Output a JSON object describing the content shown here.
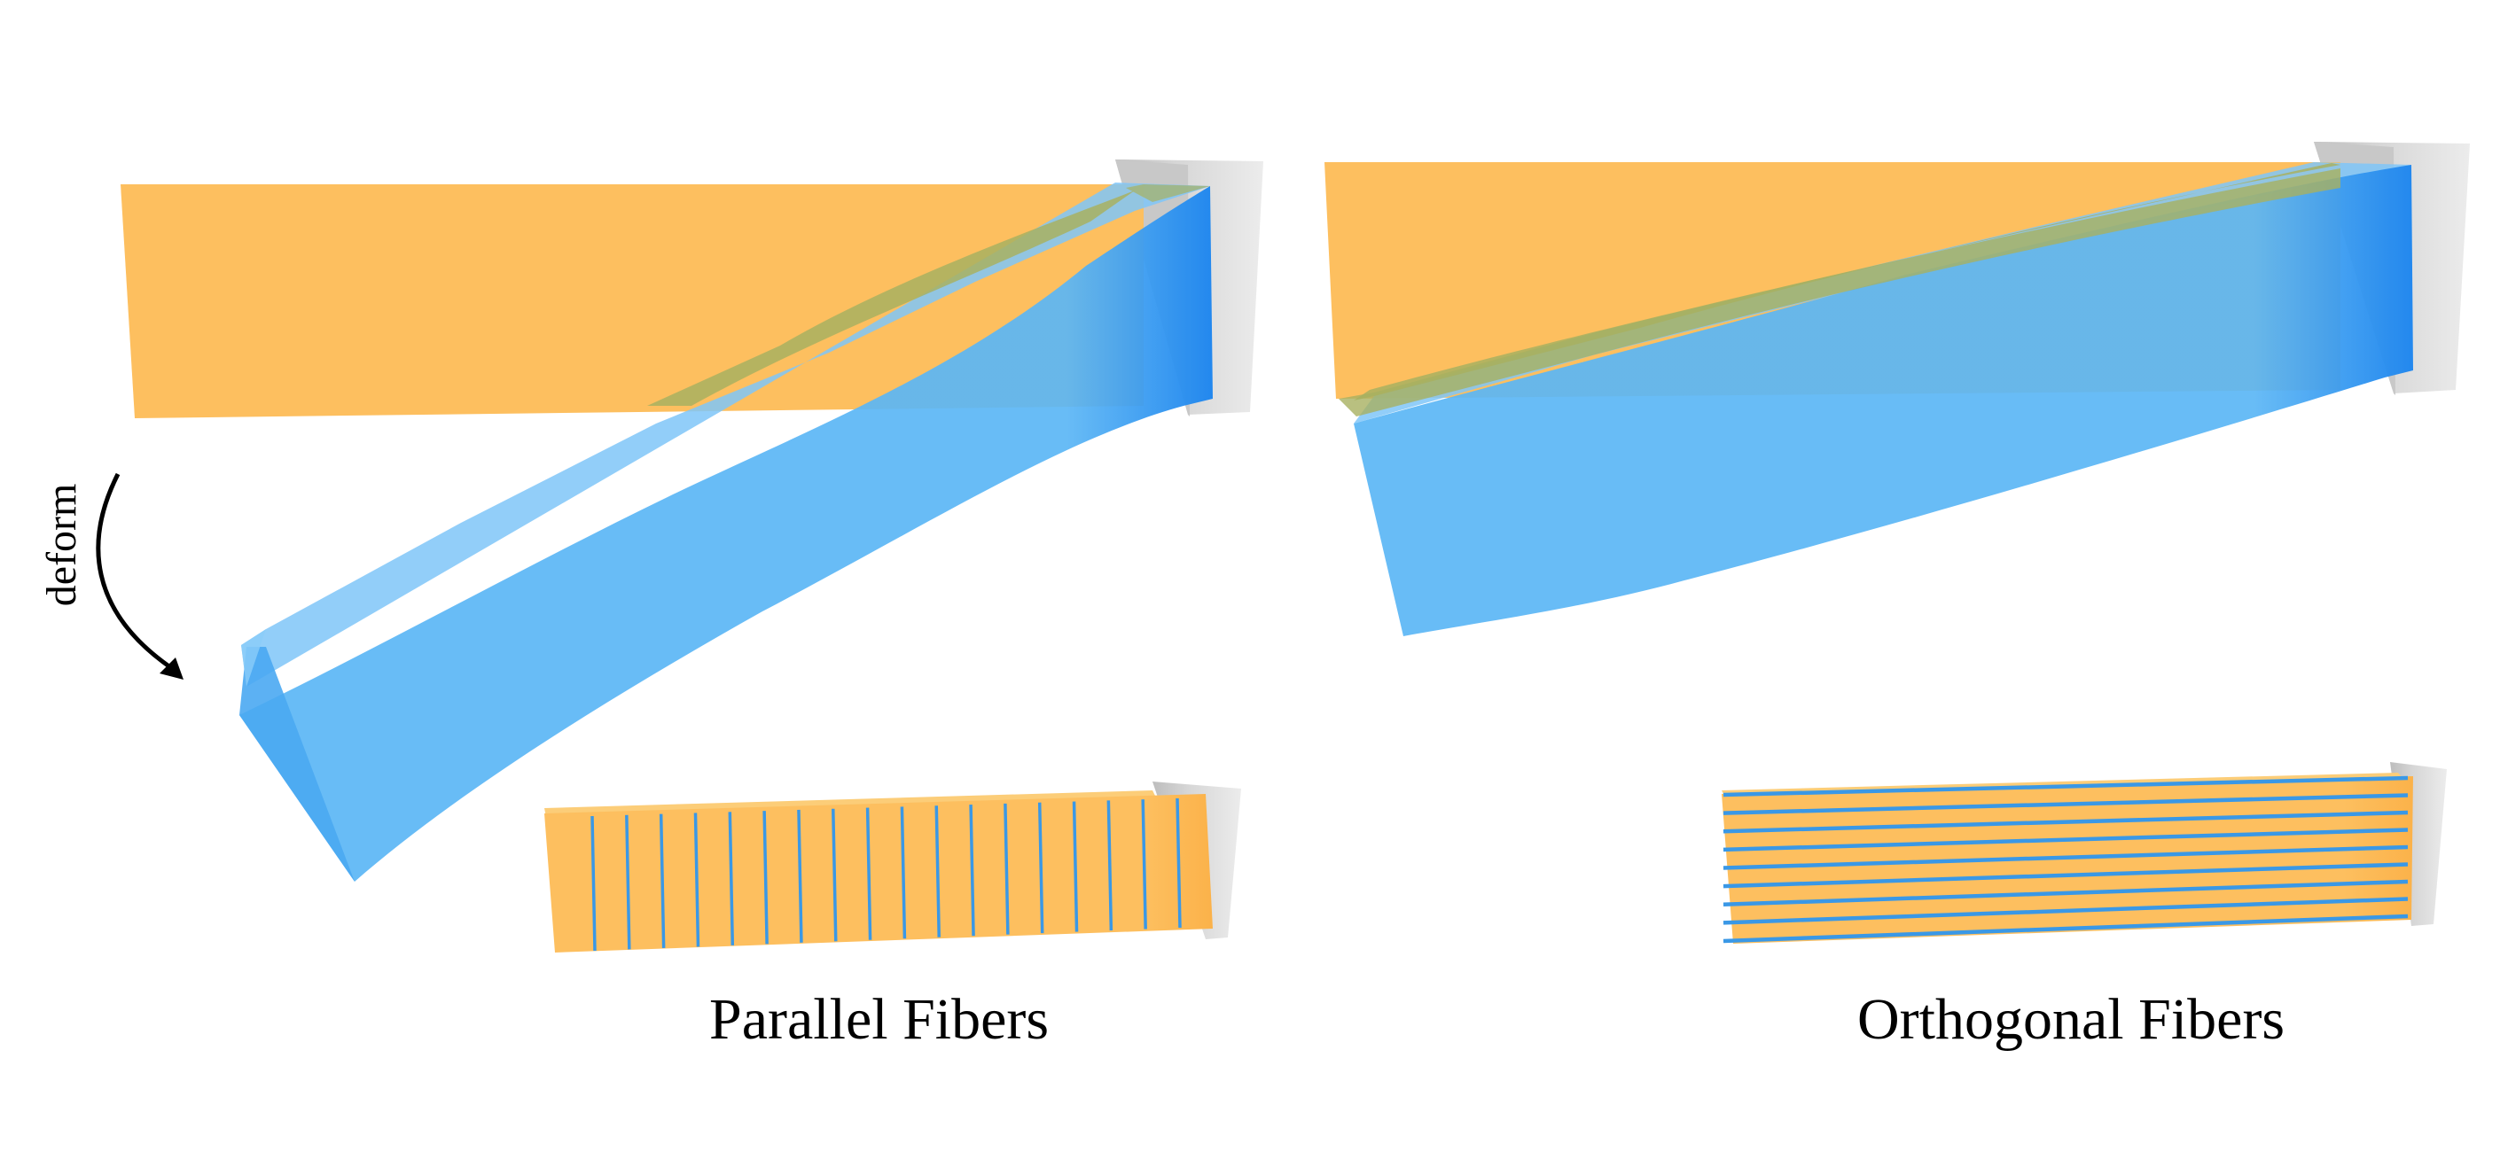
{
  "labels": {
    "deform": "deform",
    "left_caption": "Parallel Fibers",
    "right_caption": "Orthogonal Fibers"
  },
  "colors": {
    "rest_beam": "#fdbf5f",
    "deformed_beam": "#5bb6f5",
    "deformed_beam_dark": "#2d92ef",
    "overlap": "#b3b864",
    "wall": "#d5d5d5",
    "fiber": "#3a98e6"
  },
  "fiber_counts": {
    "parallel_vertical": 18,
    "orthogonal_horizontal": 9
  }
}
